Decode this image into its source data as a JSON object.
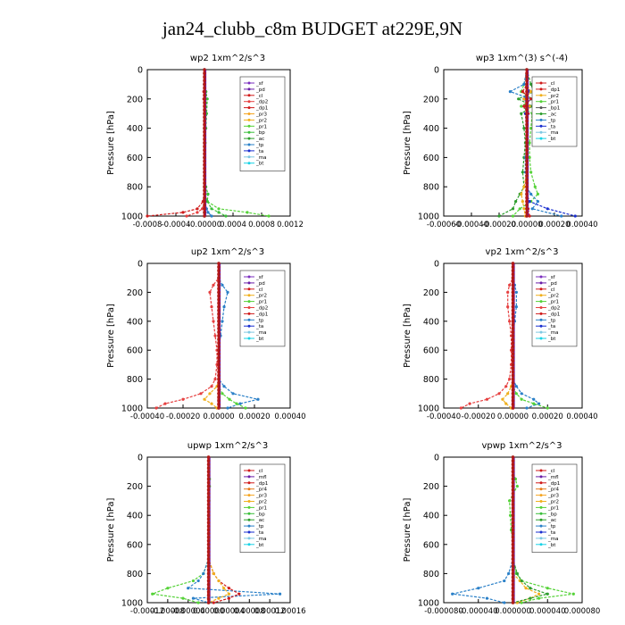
{
  "title": "jan24_clubb_c8m  BUDGET at229E,9N",
  "series_colors": {
    "_sf": "#7b2fbf",
    "_pd": "#6a1fa8",
    "_cl": "#d01c1c",
    "_mfl": "#6a1fa8",
    "_dp1": "#d01c1c",
    "_dp2": "#e64040",
    "_pr1": "#55d238",
    "_pr2": "#f0b01e",
    "_pr3": "#f5a623",
    "_pr4": "#e67a1a",
    "_bp": "#3cc03c",
    "_ac": "#2e9e2e",
    "_tp": "#2a80c8",
    "_ta": "#1a2fd0",
    "_ma": "#7ec8e3",
    "_bt": "#19d3e6"
  },
  "chart_data": [
    {
      "type": "line",
      "panel": "wp2",
      "title": "wp2   1xm^2/s^3",
      "ylabel": "Pressure  [hPa]",
      "xlim": [
        -0.0008,
        0.0012
      ],
      "ylim": [
        1000,
        0
      ],
      "grid": false,
      "legend_position": "top-right",
      "xticks": [
        "-0.0008",
        "-0.0004",
        "-0.00000",
        "0.0004",
        "0.0008",
        "0.0012"
      ],
      "yticks": [
        "0",
        "200",
        "400",
        "600",
        "800",
        "1000"
      ],
      "y": [
        0,
        100,
        150,
        200,
        300,
        400,
        500,
        600,
        700,
        800,
        850,
        900,
        950,
        975,
        1000
      ],
      "legend": [
        "_sf",
        "_pd",
        "_cl",
        "_dp2",
        "_dp1",
        "_pr3",
        "_pr2",
        "_pr1",
        "_bp",
        "_ac",
        "_tp",
        "_ta",
        "_ma",
        "_bt"
      ],
      "series": [
        {
          "name": "_pr1",
          "values": [
            0,
            0,
            2e-05,
            3e-05,
            2e-05,
            1e-05,
            0,
            0,
            0,
            0,
            1e-05,
            4e-05,
            0.0002,
            0.0006,
            0.0009
          ]
        },
        {
          "name": "_bp",
          "values": [
            0,
            0,
            2e-05,
            4e-05,
            3e-05,
            2e-05,
            1e-05,
            0,
            0,
            2e-05,
            5e-05,
            4e-05,
            0.0001,
            0.0002,
            0.0003
          ]
        },
        {
          "name": "_dp1",
          "values": [
            0,
            0,
            -1e-05,
            -1e-05,
            0,
            0,
            0,
            0,
            0,
            0,
            0,
            -2e-05,
            -0.0001,
            -0.0003,
            -0.0008
          ]
        },
        {
          "name": "_dp2",
          "values": [
            0,
            0,
            0,
            0,
            0,
            0,
            0,
            0,
            0,
            0,
            0,
            0,
            -3e-05,
            -0.0001,
            -0.00025
          ]
        },
        {
          "name": "_tp",
          "values": [
            0,
            0,
            0,
            0,
            0,
            0,
            0,
            0,
            0,
            0,
            0,
            0,
            3e-05,
            5e-05,
            0.0001
          ]
        },
        {
          "name": "_sf",
          "values": [
            0,
            0,
            0,
            0,
            0,
            0,
            0,
            0,
            0,
            0,
            0,
            0,
            0,
            0,
            0
          ]
        },
        {
          "name": "_bt",
          "values": [
            0,
            0,
            0,
            0,
            0,
            0,
            0,
            0,
            0,
            0,
            0,
            0,
            0,
            0,
            0
          ]
        }
      ]
    },
    {
      "type": "line",
      "panel": "wp3",
      "title": "wp3   1xm^(3) s^(-4)",
      "ylabel": "Pressure  [hPa]",
      "xlim": [
        -0.0006,
        0.0004
      ],
      "ylim": [
        1000,
        0
      ],
      "grid": false,
      "legend_position": "top-right",
      "xticks": [
        "-0.00060",
        "-0.00040",
        "-0.00020",
        "0.00000",
        "0.00020",
        "0.00040"
      ],
      "yticks": [
        "0",
        "200",
        "400",
        "600",
        "800",
        "1000"
      ],
      "y": [
        0,
        100,
        150,
        200,
        250,
        300,
        400,
        500,
        600,
        700,
        800,
        850,
        900,
        950,
        1000
      ],
      "legend": [
        "_cl",
        "_dp1",
        "_pr2",
        "_pr1",
        "_bp1",
        "_ac",
        "_tp",
        "_ta",
        "_ma",
        "_bt"
      ],
      "series": [
        {
          "name": "_pr1",
          "values": [
            0,
            -2e-05,
            -4e-05,
            4e-05,
            -4e-05,
            4e-05,
            3e-05,
            2e-05,
            2e-05,
            3e-05,
            6e-05,
            8e-05,
            3e-05,
            -5e-05,
            -0.0001
          ]
        },
        {
          "name": "_ac",
          "values": [
            0,
            3e-05,
            5e-05,
            -6e-05,
            4e-05,
            -4e-05,
            -2e-05,
            -1e-05,
            -2e-05,
            -3e-05,
            -2e-05,
            -5e-05,
            -8e-05,
            -0.0001,
            -0.0002
          ]
        },
        {
          "name": "_tp",
          "values": [
            0,
            -2e-05,
            -0.00012,
            3e-05,
            -2e-05,
            1e-05,
            0,
            0,
            -1e-05,
            -1e-05,
            0,
            3e-05,
            8e-05,
            4e-05,
            0.00025
          ]
        },
        {
          "name": "_ta",
          "values": [
            0,
            0,
            2e-05,
            -2e-05,
            2e-05,
            -1e-05,
            0,
            0,
            0,
            0,
            0,
            0,
            2e-05,
            0.00015,
            0.00035
          ]
        },
        {
          "name": "_pr2",
          "values": [
            0,
            0,
            3e-05,
            -2e-05,
            2e-05,
            0,
            0,
            0,
            0,
            0,
            -2e-05,
            -4e-05,
            -3e-05,
            -2e-05,
            -1e-05
          ]
        },
        {
          "name": "_dp1",
          "values": [
            0,
            0,
            -3e-05,
            3e-05,
            -2e-05,
            1e-05,
            0,
            0,
            0,
            0,
            0,
            0,
            0,
            1e-05,
            2e-05
          ]
        },
        {
          "name": "_bt",
          "values": [
            0,
            0,
            0,
            0,
            0,
            0,
            0,
            0,
            0,
            0,
            0,
            0,
            0,
            0,
            0
          ]
        }
      ]
    },
    {
      "type": "line",
      "panel": "up2",
      "title": "up2   1xm^2/s^3",
      "ylabel": "Pressure  [hPa]",
      "xlim": [
        -0.0004,
        0.0004
      ],
      "ylim": [
        1000,
        0
      ],
      "grid": false,
      "legend_position": "top-right",
      "xticks": [
        "-0.00040",
        "-0.00020",
        "0.00000",
        "0.00020",
        "0.00040"
      ],
      "yticks": [
        "0",
        "200",
        "400",
        "600",
        "800",
        "1000"
      ],
      "y": [
        0,
        100,
        150,
        200,
        300,
        400,
        500,
        600,
        700,
        800,
        850,
        900,
        940,
        970,
        1000
      ],
      "legend": [
        "_sf",
        "_pd",
        "_cl",
        "_pr2",
        "_pr1",
        "_dp2",
        "_dp1",
        "_tp",
        "_ta",
        "_ma",
        "_bt"
      ],
      "series": [
        {
          "name": "_dp2",
          "values": [
            0,
            0,
            -3e-05,
            -5e-05,
            -4e-05,
            -3e-05,
            -2e-05,
            -1e-05,
            -1e-05,
            -2e-05,
            -4e-05,
            -0.0001,
            -0.0002,
            -0.0003,
            -0.00035
          ]
        },
        {
          "name": "_tp",
          "values": [
            0,
            0,
            2e-05,
            5e-05,
            3e-05,
            2e-05,
            1e-05,
            0,
            0,
            0,
            3e-05,
            8e-05,
            0.00022,
            0.00012,
            5e-05
          ]
        },
        {
          "name": "_pr2",
          "values": [
            0,
            0,
            0,
            0,
            0,
            0,
            0,
            0,
            0,
            0,
            -1e-05,
            -5e-05,
            -8e-05,
            -4e-05,
            -1e-05
          ]
        },
        {
          "name": "_pr1",
          "values": [
            0,
            0,
            0,
            0,
            0,
            0,
            0,
            0,
            0,
            0,
            0,
            2e-05,
            6e-05,
            0.0001,
            0.00015
          ]
        },
        {
          "name": "_sf",
          "values": [
            0,
            0,
            0,
            0,
            0,
            0,
            0,
            0,
            0,
            0,
            0,
            0,
            0,
            0,
            0
          ]
        },
        {
          "name": "_cl",
          "values": [
            0,
            0,
            0,
            0,
            0,
            0,
            0,
            0,
            0,
            0,
            0,
            0,
            0,
            0,
            0
          ]
        }
      ]
    },
    {
      "type": "line",
      "panel": "vp2",
      "title": "vp2   1xm^2/s^3",
      "ylabel": "Pressure  [hPa]",
      "xlim": [
        -0.0004,
        0.0004
      ],
      "ylim": [
        1000,
        0
      ],
      "grid": false,
      "legend_position": "top-right",
      "xticks": [
        "-0.00040",
        "-0.00020",
        "0.00000",
        "0.00020",
        "0.00040"
      ],
      "yticks": [
        "0",
        "200",
        "400",
        "600",
        "800",
        "1000"
      ],
      "y": [
        0,
        100,
        150,
        200,
        300,
        400,
        500,
        600,
        700,
        800,
        850,
        900,
        940,
        970,
        1000
      ],
      "legend": [
        "_sf",
        "_pd",
        "_cl",
        "_pr2",
        "_pr1",
        "_dp2",
        "_dp1",
        "_tp",
        "_ta",
        "_ma",
        "_bt"
      ],
      "series": [
        {
          "name": "_dp2",
          "values": [
            0,
            0,
            -2e-05,
            -3e-05,
            -3e-05,
            -2e-05,
            -1e-05,
            -1e-05,
            -1e-05,
            -2e-05,
            -4e-05,
            -8e-05,
            -0.00015,
            -0.00025,
            -0.0003
          ]
        },
        {
          "name": "_tp",
          "values": [
            0,
            0,
            1e-05,
            2e-05,
            2e-05,
            1e-05,
            0,
            0,
            0,
            0,
            2e-05,
            5e-05,
            0.00012,
            0.00015,
            8e-05
          ]
        },
        {
          "name": "_pr2",
          "values": [
            0,
            0,
            0,
            0,
            0,
            0,
            0,
            0,
            0,
            0,
            -1e-05,
            -3e-05,
            -6e-05,
            -4e-05,
            -1e-05
          ]
        },
        {
          "name": "_pr1",
          "values": [
            0,
            0,
            0,
            0,
            0,
            0,
            0,
            0,
            0,
            0,
            0,
            2e-05,
            5e-05,
            0.00012,
            0.0002
          ]
        },
        {
          "name": "_sf",
          "values": [
            0,
            0,
            0,
            0,
            0,
            0,
            0,
            0,
            0,
            0,
            0,
            0,
            0,
            0,
            0
          ]
        },
        {
          "name": "_cl",
          "values": [
            0,
            0,
            0,
            0,
            0,
            0,
            0,
            0,
            0,
            0,
            0,
            0,
            0,
            0,
            0
          ]
        }
      ]
    },
    {
      "type": "line",
      "panel": "upwp",
      "title": "upwp   1xm^2/s^3",
      "ylabel": "Pressure  [hPa]",
      "xlim": [
        -0.00012,
        0.00016
      ],
      "ylim": [
        1000,
        0
      ],
      "grid": false,
      "legend_position": "top-right",
      "xticks": [
        "-0.00012",
        "-0.00008",
        "-0.00004",
        "0.00000",
        "0.00004",
        "0.00008",
        "0.00012",
        "0.00016"
      ],
      "yticks": [
        "0",
        "200",
        "400",
        "600",
        "800",
        "1000"
      ],
      "y": [
        0,
        100,
        150,
        200,
        300,
        400,
        500,
        600,
        700,
        800,
        850,
        900,
        940,
        970,
        1000
      ],
      "legend": [
        "_cl",
        "_mfl",
        "_dp1",
        "_pr4",
        "_pr3",
        "_pr2",
        "_pr1",
        "_bp",
        "_ac",
        "_tp",
        "_ta",
        "_ma",
        "_bt"
      ],
      "series": [
        {
          "name": "_pr1",
          "values": [
            0,
            0,
            2e-06,
            2e-06,
            1e-06,
            0,
            0,
            0,
            0,
            -1e-05,
            -3e-05,
            -8e-05,
            -0.00011,
            -5e-05,
            -2e-05
          ]
        },
        {
          "name": "_tp",
          "values": [
            0,
            0,
            0,
            0,
            0,
            0,
            0,
            0,
            0,
            -1e-05,
            -2e-05,
            -4e-05,
            0.00014,
            -3e-05,
            0
          ]
        },
        {
          "name": "_dp1",
          "values": [
            0,
            0,
            0,
            0,
            0,
            0,
            0,
            0,
            0,
            1e-05,
            2e-05,
            4e-05,
            6e-05,
            4e-05,
            1e-05
          ]
        },
        {
          "name": "_pr2",
          "values": [
            0,
            0,
            0,
            0,
            0,
            0,
            0,
            0,
            0,
            1e-05,
            2e-05,
            3e-05,
            4e-05,
            2e-05,
            0
          ]
        },
        {
          "name": "_cl",
          "values": [
            0,
            0,
            0,
            0,
            0,
            0,
            0,
            0,
            0,
            0,
            0,
            0,
            0,
            0,
            0
          ]
        }
      ]
    },
    {
      "type": "line",
      "panel": "vpwp",
      "title": "vpwp   1xm^2/s^3",
      "ylabel": "Pressure  [hPa]",
      "xlim": [
        -8e-05,
        8e-05
      ],
      "ylim": [
        1000,
        0
      ],
      "grid": false,
      "legend_position": "top-right",
      "xticks": [
        "-0.000080",
        "-0.000040",
        "0.000000",
        "0.000040",
        "0.000080"
      ],
      "yticks": [
        "0",
        "200",
        "400",
        "600",
        "800",
        "1000"
      ],
      "y": [
        0,
        100,
        150,
        200,
        300,
        400,
        500,
        600,
        700,
        800,
        850,
        900,
        940,
        970,
        1000
      ],
      "legend": [
        "_cl",
        "_mfl",
        "_dp1",
        "_pr4",
        "_pr3",
        "_pr2",
        "_pr1",
        "_bp",
        "_ac",
        "_tp",
        "_ta",
        "_ma",
        "_bt"
      ],
      "series": [
        {
          "name": "_pr1",
          "values": [
            0,
            0,
            3e-06,
            5e-06,
            -4e-06,
            -3e-06,
            -2e-06,
            0,
            0,
            4e-06,
            1e-05,
            4e-05,
            7e-05,
            3e-05,
            1e-05
          ]
        },
        {
          "name": "_tp",
          "values": [
            0,
            0,
            0,
            0,
            0,
            0,
            0,
            0,
            0,
            -5e-06,
            -1e-05,
            -4e-05,
            -7e-05,
            -3e-05,
            -1e-05
          ]
        },
        {
          "name": "_pr2",
          "values": [
            0,
            0,
            0,
            0,
            0,
            0,
            0,
            0,
            0,
            0,
            8e-06,
            1.5e-05,
            3e-05,
            2e-05,
            5e-06
          ]
        },
        {
          "name": "_ac",
          "values": [
            0,
            0,
            0,
            0,
            0,
            0,
            0,
            0,
            0,
            5e-06,
            1e-05,
            2e-05,
            4e-05,
            2e-05,
            0
          ]
        },
        {
          "name": "_cl",
          "values": [
            0,
            0,
            0,
            0,
            0,
            0,
            0,
            0,
            0,
            0,
            0,
            0,
            0,
            0,
            0
          ]
        }
      ]
    }
  ]
}
